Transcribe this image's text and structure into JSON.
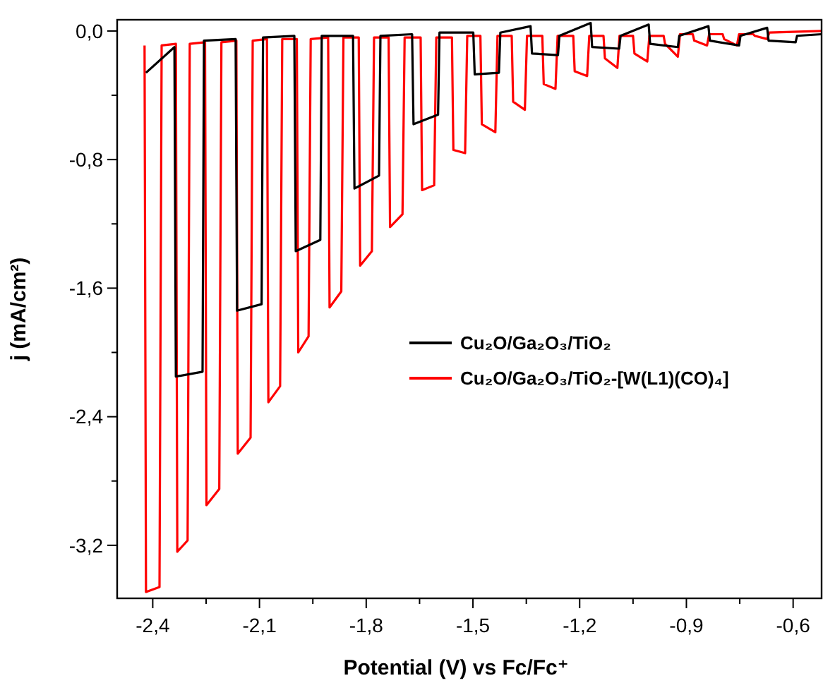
{
  "chart_data": {
    "type": "line",
    "xlabel": "Potential (V) vs Fc/Fc⁺",
    "ylabel": "j (mA/cm²)",
    "xlim": [
      -2.5,
      -0.52
    ],
    "ylim": [
      -3.53,
      0.07
    ],
    "xticks": [
      {
        "value": -2.4,
        "label": "-2,4"
      },
      {
        "value": -2.25,
        "label": null
      },
      {
        "value": -2.1,
        "label": "-2,1"
      },
      {
        "value": -1.95,
        "label": null
      },
      {
        "value": -1.8,
        "label": "-1,8"
      },
      {
        "value": -1.65,
        "label": null
      },
      {
        "value": -1.5,
        "label": "-1,5"
      },
      {
        "value": -1.35,
        "label": null
      },
      {
        "value": -1.2,
        "label": "-1,2"
      },
      {
        "value": -1.05,
        "label": null
      },
      {
        "value": -0.9,
        "label": "-0,9"
      },
      {
        "value": -0.75,
        "label": null
      },
      {
        "value": -0.6,
        "label": "-0,6"
      }
    ],
    "yticks": [
      {
        "value": 0,
        "label": "0,0"
      },
      {
        "value": -0.4,
        "label": null
      },
      {
        "value": -0.8,
        "label": "-0,8"
      },
      {
        "value": -1.2,
        "label": null
      },
      {
        "value": -1.6,
        "label": "-1,6"
      },
      {
        "value": -2.0,
        "label": null
      },
      {
        "value": -2.4,
        "label": "-2,4"
      },
      {
        "value": -2.8,
        "label": null
      },
      {
        "value": -3.2,
        "label": "-3,2"
      }
    ],
    "legend": "right",
    "series": [
      {
        "name": "Cu₂O/Ga₂O₃/TiO₂",
        "color": "#000000",
        "x": [
          -2.419,
          -2.339,
          -2.335,
          -2.26,
          -2.256,
          -2.167,
          -2.163,
          -2.094,
          -2.09,
          -2.002,
          -1.998,
          -1.929,
          -1.925,
          -1.837,
          -1.833,
          -1.764,
          -1.76,
          -1.671,
          -1.667,
          -1.598,
          -1.594,
          -1.499,
          -1.495,
          -1.427,
          -1.423,
          -1.338,
          -1.334,
          -1.261,
          -1.257,
          -1.169,
          -1.165,
          -1.089,
          -1.085,
          -1.006,
          -1.002,
          -0.924,
          -0.92,
          -0.838,
          -0.834,
          -0.752,
          -0.748,
          -0.673,
          -0.669,
          -0.593,
          -0.589,
          -0.52
        ],
        "values": [
          -0.26,
          -0.1,
          -2.15,
          -2.12,
          -0.06,
          -0.05,
          -1.74,
          -1.7,
          -0.04,
          -0.03,
          -1.37,
          -1.3,
          -0.03,
          -0.03,
          -0.98,
          -0.9,
          -0.03,
          -0.02,
          -0.58,
          -0.52,
          -0.01,
          -0.01,
          -0.27,
          -0.26,
          -0.01,
          0.03,
          -0.14,
          -0.15,
          -0.03,
          0.05,
          -0.1,
          -0.11,
          -0.03,
          0.04,
          -0.08,
          -0.1,
          -0.03,
          0.03,
          -0.06,
          -0.09,
          -0.03,
          0.02,
          -0.06,
          -0.07,
          -0.03,
          -0.02
        ]
      },
      {
        "name": "Cu₂O/Ga₂O₃/TiO₂-[W(L1)(CO)₄]",
        "color": "#ff0000",
        "x": [
          -2.423,
          -2.419,
          -2.381,
          -2.375,
          -2.335,
          -2.331,
          -2.302,
          -2.296,
          -2.253,
          -2.249,
          -2.213,
          -2.207,
          -2.165,
          -2.161,
          -2.125,
          -2.119,
          -2.079,
          -2.075,
          -2.042,
          -2.036,
          -1.995,
          -1.991,
          -1.962,
          -1.956,
          -1.907,
          -1.903,
          -1.87,
          -1.864,
          -1.821,
          -1.817,
          -1.784,
          -1.778,
          -1.737,
          -1.733,
          -1.698,
          -1.692,
          -1.647,
          -1.643,
          -1.609,
          -1.603,
          -1.559,
          -1.555,
          -1.522,
          -1.516,
          -1.479,
          -1.475,
          -1.437,
          -1.431,
          -1.391,
          -1.387,
          -1.354,
          -1.348,
          -1.305,
          -1.301,
          -1.268,
          -1.262,
          -1.218,
          -1.214,
          -1.179,
          -1.173,
          -1.133,
          -1.129,
          -1.094,
          -1.088,
          -1.05,
          -1.046,
          -1.01,
          -1.004,
          -0.964,
          -0.96,
          -0.924,
          -0.918,
          -0.882,
          -0.878,
          -0.842,
          -0.836,
          -0.798,
          -0.794,
          -0.758,
          -0.752,
          -0.712,
          -0.708,
          -0.673,
          -0.667,
          -0.52
        ],
        "values": [
          -0.09,
          -3.49,
          -3.46,
          -0.09,
          -0.08,
          -3.24,
          -3.17,
          -0.08,
          -0.07,
          -2.95,
          -2.85,
          -0.07,
          -0.06,
          -2.63,
          -2.53,
          -0.06,
          -0.05,
          -2.31,
          -2.21,
          -0.05,
          -0.05,
          -2.0,
          -1.9,
          -0.05,
          -0.04,
          -1.72,
          -1.62,
          -0.04,
          -0.04,
          -1.46,
          -1.37,
          -0.04,
          -0.04,
          -1.22,
          -1.14,
          -0.04,
          -0.04,
          -0.99,
          -0.96,
          -0.04,
          -0.04,
          -0.74,
          -0.76,
          -0.03,
          -0.03,
          -0.58,
          -0.63,
          -0.03,
          -0.03,
          -0.44,
          -0.49,
          -0.03,
          -0.03,
          -0.33,
          -0.36,
          -0.03,
          -0.03,
          -0.25,
          -0.28,
          -0.03,
          -0.03,
          -0.17,
          -0.23,
          -0.03,
          -0.03,
          -0.14,
          -0.19,
          -0.03,
          -0.03,
          -0.08,
          -0.16,
          -0.02,
          -0.02,
          -0.06,
          -0.09,
          -0.02,
          -0.02,
          -0.05,
          -0.09,
          -0.02,
          -0.02,
          -0.03,
          -0.05,
          -0.01,
          0.0
        ]
      }
    ]
  }
}
